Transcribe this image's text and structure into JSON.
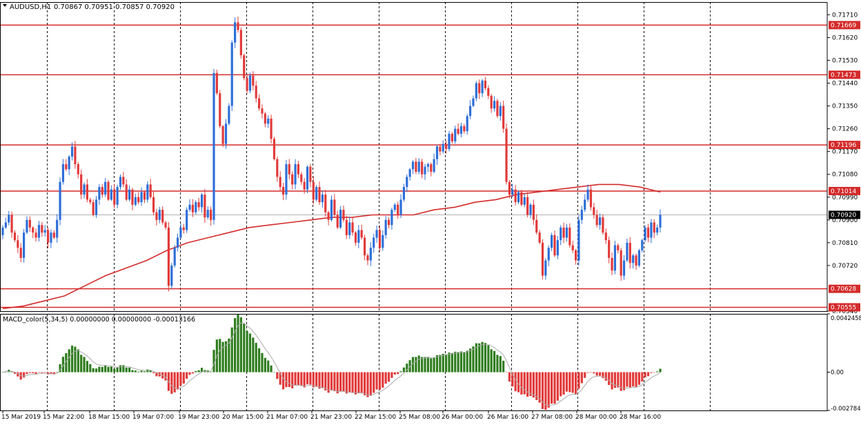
{
  "header": {
    "symbol": "AUDUSD,H1",
    "ohlc": "0.70867 0.70951 0.70857 0.70920"
  },
  "indicator_header": {
    "text": "MACD_color(5,34,5) 0.00000000 0.00000000 -0.00013166"
  },
  "colors": {
    "bull": "#2e6fd8",
    "bear": "#e23a3a",
    "level": "#d42a2a",
    "ma": "#d42a2a",
    "macd_pos": "#2e7d1e",
    "macd_neg": "#e23a3a",
    "signal": "#aaaaaa",
    "grid": "#000000",
    "current_price_bg": "#000000"
  },
  "chart_data": [
    {
      "type": "candlestick",
      "title": "AUDUSD,H1",
      "ylim": [
        0.7054,
        0.7176
      ],
      "y_ticks": [
        "0.71710",
        "0.71620",
        "0.71530",
        "0.71440",
        "0.71350",
        "0.71260",
        "0.71170",
        "0.71080",
        "0.70990",
        "0.70900",
        "0.70810",
        "0.70720",
        "0.70540"
      ],
      "x_ticks": [
        "15 Mar 2019",
        "15 Mar 22:00",
        "18 Mar 15:00",
        "19 Mar 07:00",
        "19 Mar 23:00",
        "20 Mar 15:00",
        "21 Mar 07:00",
        "21 Mar 23:00",
        "22 Mar 15:00",
        "25 Mar 08:00",
        "26 Mar 00:00",
        "26 Mar 16:00",
        "27 Mar 08:00",
        "28 Mar 00:00",
        "28 Mar 16:00"
      ],
      "levels": [
        {
          "value": 0.71669,
          "label": "0.71669"
        },
        {
          "value": 0.71473,
          "label": "0.71473"
        },
        {
          "value": 0.71196,
          "label": "0.71196"
        },
        {
          "value": 0.71014,
          "label": "0.71014"
        },
        {
          "value": 0.70628,
          "label": "0.70628"
        },
        {
          "value": 0.70555,
          "label": "0.70555"
        }
      ],
      "current_price": {
        "value": 0.7092,
        "label": "0.70920"
      },
      "close": [
        0.7087,
        0.7089,
        0.7092,
        0.7085,
        0.7082,
        0.7079,
        0.7075,
        0.7085,
        0.709,
        0.7087,
        0.7085,
        0.7083,
        0.7088,
        0.7085,
        0.7086,
        0.7081,
        0.7085,
        0.7083,
        0.709,
        0.7105,
        0.7112,
        0.711,
        0.7115,
        0.7119,
        0.7112,
        0.7108,
        0.71,
        0.7104,
        0.7098,
        0.7097,
        0.7092,
        0.7098,
        0.7103,
        0.71,
        0.7105,
        0.7098,
        0.7102,
        0.7096,
        0.7103,
        0.7107,
        0.7104,
        0.7098,
        0.7102,
        0.7096,
        0.7099,
        0.7097,
        0.7101,
        0.7098,
        0.7104,
        0.7099,
        0.7093,
        0.709,
        0.7094,
        0.7089,
        0.7087,
        0.7064,
        0.7072,
        0.7079,
        0.7083,
        0.7087,
        0.7086,
        0.7094,
        0.7096,
        0.7093,
        0.7097,
        0.7095,
        0.71,
        0.7091,
        0.7094,
        0.709,
        0.7148,
        0.714,
        0.7127,
        0.712,
        0.7128,
        0.7135,
        0.716,
        0.7168,
        0.7165,
        0.7155,
        0.7146,
        0.7141,
        0.7147,
        0.7143,
        0.7138,
        0.7134,
        0.7132,
        0.7128,
        0.713,
        0.7122,
        0.7114,
        0.7107,
        0.7103,
        0.71,
        0.7112,
        0.7108,
        0.7104,
        0.7112,
        0.7108,
        0.7105,
        0.7102,
        0.7111,
        0.7105,
        0.7098,
        0.7103,
        0.7097,
        0.71,
        0.7093,
        0.709,
        0.7098,
        0.7092,
        0.7087,
        0.7094,
        0.709,
        0.7084,
        0.7089,
        0.7085,
        0.7081,
        0.7086,
        0.7083,
        0.7076,
        0.7074,
        0.7079,
        0.7083,
        0.7086,
        0.7079,
        0.7084,
        0.709,
        0.7088,
        0.7094,
        0.7096,
        0.7092,
        0.7098,
        0.7103,
        0.7107,
        0.711,
        0.7113,
        0.7109,
        0.7113,
        0.7108,
        0.7111,
        0.7112,
        0.7109,
        0.7114,
        0.7119,
        0.7117,
        0.712,
        0.7118,
        0.7124,
        0.7121,
        0.7126,
        0.7124,
        0.7127,
        0.7125,
        0.7131,
        0.7135,
        0.7138,
        0.7144,
        0.714,
        0.7145,
        0.7142,
        0.7139,
        0.7134,
        0.7137,
        0.7131,
        0.7135,
        0.7126,
        0.7105,
        0.71,
        0.7102,
        0.7097,
        0.7101,
        0.7096,
        0.7099,
        0.7092,
        0.7096,
        0.709,
        0.7085,
        0.7081,
        0.7068,
        0.7074,
        0.7079,
        0.7084,
        0.7076,
        0.7082,
        0.7087,
        0.7083,
        0.7087,
        0.708,
        0.7078,
        0.7074,
        0.709,
        0.7094,
        0.7098,
        0.7102,
        0.7095,
        0.7092,
        0.7088,
        0.7091,
        0.7085,
        0.7082,
        0.7075,
        0.707,
        0.708,
        0.7078,
        0.7068,
        0.7074,
        0.7081,
        0.7073,
        0.7076,
        0.7072,
        0.7078,
        0.7082,
        0.7087,
        0.7083,
        0.7089,
        0.7085,
        0.7087,
        0.7092
      ],
      "ma_line": [
        0.7055,
        0.7056,
        0.7058,
        0.706,
        0.7064,
        0.7068,
        0.7071,
        0.7074,
        0.7078,
        0.7081,
        0.7083,
        0.7085,
        0.7087,
        0.7088,
        0.7089,
        0.709,
        0.7091,
        0.7091,
        0.7092,
        0.7092,
        0.7092,
        0.7094,
        0.7095,
        0.7097,
        0.7098,
        0.71,
        0.7101,
        0.7102,
        0.7103,
        0.7104,
        0.7104,
        0.7103,
        0.7101
      ],
      "macd_ylim": [
        -0.002784,
        0.004245
      ],
      "macd_ticks": [
        "0.0042458",
        "0.00",
        "-0.002784"
      ]
    }
  ]
}
